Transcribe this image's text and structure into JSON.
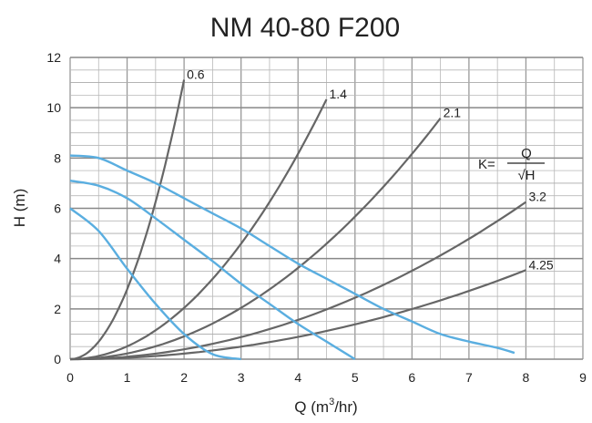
{
  "chart_data": {
    "type": "line",
    "title": "NM 40-80 F200",
    "xlabel": "Q (m³/hr)",
    "xlabel_parts": {
      "main": "Q (m",
      "sup": "3",
      "tail": "/hr)"
    },
    "ylabel": "H (m)",
    "xlim": [
      0,
      9
    ],
    "ylim": [
      0,
      12
    ],
    "xticks": [
      0,
      1,
      2,
      3,
      4,
      5,
      6,
      7,
      8,
      9
    ],
    "yticks": [
      0,
      2,
      4,
      6,
      8,
      10,
      12
    ],
    "grid": true,
    "formula": {
      "lhs": "K=",
      "numerator": "Q",
      "denominator": "√H"
    },
    "colors": {
      "pump_curve": "#5aaee0",
      "system_curve": "#666666",
      "grid": "#b8b8b8"
    },
    "system_curves": [
      {
        "name": "0.6",
        "K": 0.6,
        "qmax": 2.0
      },
      {
        "name": "1.4",
        "K": 1.4,
        "qmax": 4.5
      },
      {
        "name": "2.1",
        "K": 2.1,
        "qmax": 6.5
      },
      {
        "name": "3.2",
        "K": 3.2,
        "qmax": 8.0
      },
      {
        "name": "4.25",
        "K": 4.25,
        "qmax": 8.0
      }
    ],
    "pump_curves": [
      {
        "points": [
          [
            0,
            8.1
          ],
          [
            0.5,
            8.0
          ],
          [
            1,
            7.5
          ],
          [
            1.5,
            7.0
          ],
          [
            2,
            6.4
          ],
          [
            2.5,
            5.8
          ],
          [
            3,
            5.2
          ],
          [
            3.5,
            4.5
          ],
          [
            4,
            3.8
          ],
          [
            4.5,
            3.2
          ],
          [
            5,
            2.6
          ],
          [
            5.5,
            2.0
          ],
          [
            6,
            1.5
          ],
          [
            6.5,
            1.0
          ],
          [
            7,
            0.7
          ],
          [
            7.5,
            0.45
          ],
          [
            7.8,
            0.25
          ]
        ]
      },
      {
        "points": [
          [
            0,
            7.1
          ],
          [
            0.5,
            6.9
          ],
          [
            1,
            6.4
          ],
          [
            1.5,
            5.6
          ],
          [
            2,
            4.75
          ],
          [
            2.5,
            3.9
          ],
          [
            3,
            3.0
          ],
          [
            3.5,
            2.2
          ],
          [
            4,
            1.4
          ],
          [
            4.5,
            0.7
          ],
          [
            5,
            0
          ]
        ]
      },
      {
        "points": [
          [
            0,
            6.0
          ],
          [
            0.5,
            5.1
          ],
          [
            1,
            3.6
          ],
          [
            1.5,
            2.2
          ],
          [
            2,
            1.0
          ],
          [
            2.5,
            0.2
          ],
          [
            3,
            0
          ]
        ]
      }
    ]
  }
}
